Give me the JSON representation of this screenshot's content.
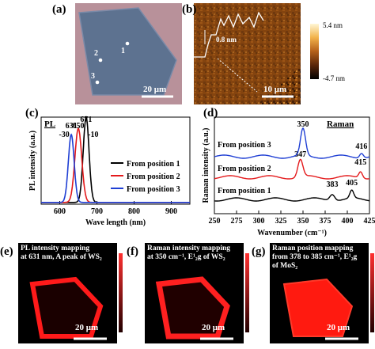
{
  "panel_labels": {
    "a": "(a)",
    "b": "(b)",
    "c": "(c)",
    "d": "(d)",
    "e": "(e)",
    "f": "(f)",
    "g": "(g)"
  },
  "panel_a": {
    "positions": [
      "1",
      "2",
      "3"
    ],
    "scale_bar": "20 μm",
    "colors": {
      "background": "#b58a92",
      "flake": "#5b6f8c"
    }
  },
  "panel_b": {
    "height_label": "0.8 nm",
    "scale_bar": "10 μm",
    "colorbar_max": "5.4 nm",
    "colorbar_min": "-4.7 nm"
  },
  "panel_e": {
    "caption_lines": [
      "PL intensity mapping",
      "at 631 nm, A peak of WS₂"
    ],
    "scale_bar": "20 μm"
  },
  "panel_f": {
    "caption_lines": [
      "Raman intensity mapping",
      "at 350 cm⁻¹, E¹₂g of WS₂"
    ],
    "scale_bar": "20 μm"
  },
  "panel_g": {
    "caption_lines": [
      "Raman position mapping",
      "from 378 to 385 cm⁻¹, E¹₂g",
      "of MoS₂"
    ],
    "scale_bar": "20 μm"
  },
  "chart_data": [
    {
      "type": "line",
      "panel": "c",
      "corner_label": "PL",
      "xlabel": "Wave length (nm)",
      "ylabel": "PL intensity (a.u.)",
      "xlim": [
        550,
        950
      ],
      "xticks": [
        600,
        700,
        800,
        900
      ],
      "peak_labels": [
        {
          "text": "631",
          "x": 631
        },
        {
          "text": "650",
          "x": 650
        },
        {
          "text": "671",
          "x": 671
        },
        {
          "text": "-30",
          "x": 612
        },
        {
          "text": "-10",
          "x": 690
        }
      ],
      "series": [
        {
          "name": "From position 1",
          "color": "#000000",
          "peak": 671,
          "height": 0.98,
          "width": 11
        },
        {
          "name": "From position 2",
          "color": "#e41a1c",
          "peak": 650,
          "height": 0.85,
          "width": 13
        },
        {
          "name": "From position 3",
          "color": "#1f3fd4",
          "peak": 631,
          "height": 0.78,
          "width": 11
        }
      ]
    },
    {
      "type": "line",
      "panel": "d",
      "corner_label": "Raman",
      "xlabel": "Wavenumber (cm⁻¹)",
      "ylabel": "Raman intensity (a.u.)",
      "xlim": [
        250,
        425
      ],
      "xticks": [
        250,
        275,
        300,
        325,
        350,
        375,
        400,
        425
      ],
      "series": [
        {
          "name": "From position 1",
          "color": "#000000",
          "peaks": [
            {
              "x": 383,
              "label": "383"
            },
            {
              "x": 405,
              "label": "405"
            }
          ]
        },
        {
          "name": "From position 2",
          "color": "#e41a1c",
          "peaks": [
            {
              "x": 347,
              "label": "347"
            },
            {
              "x": 415,
              "label": "415"
            }
          ]
        },
        {
          "name": "From position 3",
          "color": "#1f3fd4",
          "peaks": [
            {
              "x": 350,
              "label": "350"
            },
            {
              "x": 416,
              "label": "416"
            }
          ]
        }
      ]
    }
  ]
}
